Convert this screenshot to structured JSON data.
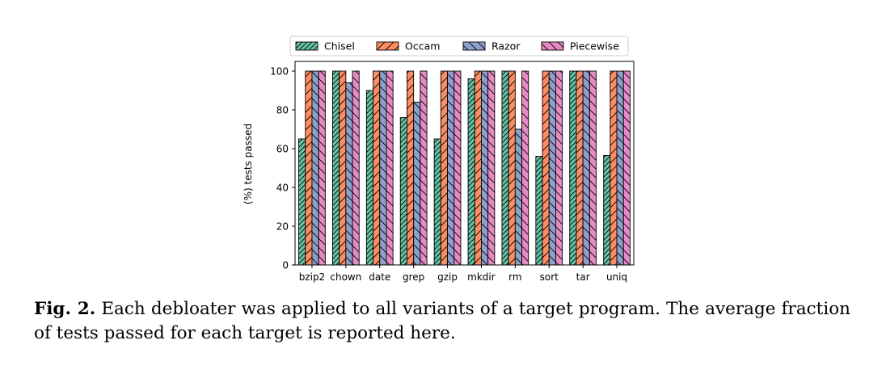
{
  "chart_data": {
    "type": "bar",
    "categories": [
      "bzip2",
      "chown",
      "date",
      "grep",
      "gzip",
      "mkdir",
      "rm",
      "sort",
      "tar",
      "uniq"
    ],
    "series": [
      {
        "name": "Chisel",
        "values": [
          65,
          100,
          90,
          76,
          65,
          96,
          100,
          56,
          100,
          56.5
        ],
        "color": "#66c2a5",
        "hatch": "////"
      },
      {
        "name": "Occam",
        "values": [
          100,
          100,
          100,
          100,
          100,
          100,
          100,
          100,
          100,
          100
        ],
        "color": "#fc8d62",
        "hatch": "//"
      },
      {
        "name": "Razor",
        "values": [
          100,
          94,
          100,
          84,
          100,
          100,
          70,
          100,
          100,
          100
        ],
        "color": "#8da0cb",
        "hatch": "\\\\"
      },
      {
        "name": "Piecewise",
        "values": [
          100,
          100,
          100,
          100,
          100,
          100,
          100,
          100,
          100,
          100
        ],
        "color": "#e78ac3",
        "hatch": "\\"
      }
    ],
    "xlabel": "",
    "ylabel": "(%) tests passed",
    "ylim": [
      0,
      105
    ],
    "yticks": [
      0,
      20,
      40,
      60,
      80,
      100
    ],
    "grid": false,
    "legend_position": "top-center, above plot"
  },
  "caption": {
    "label": "Fig. 2.",
    "text": "Each debloater was applied to all variants of a target program. The average fraction of tests passed for each target is reported here."
  }
}
